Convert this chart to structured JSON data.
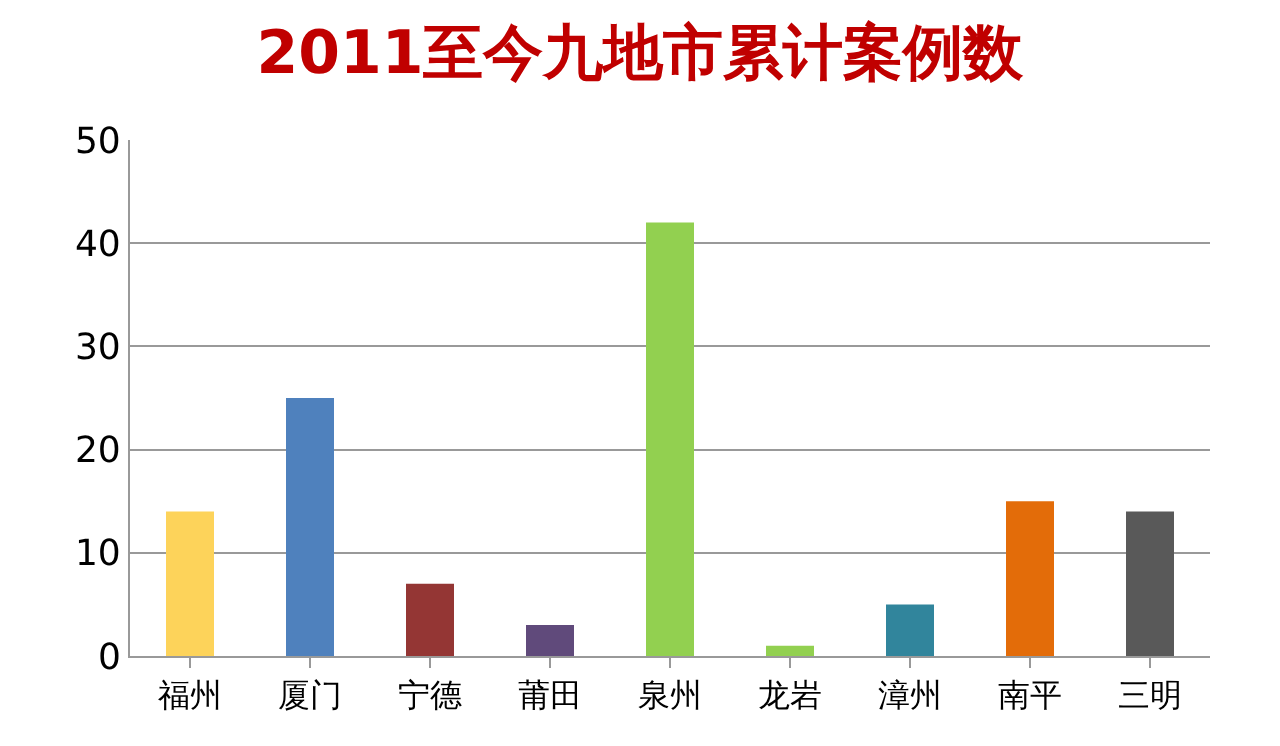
{
  "chart_data": {
    "type": "bar",
    "title": "2011至今九地市累计案例数",
    "categories": [
      "福州",
      "厦门",
      "宁德",
      "莆田",
      "泉州",
      "龙岩",
      "漳州",
      "南平",
      "三明"
    ],
    "values": [
      14,
      25,
      7,
      3,
      42,
      1,
      5,
      15,
      14
    ],
    "colors": [
      "#fdd35a",
      "#4f81bd",
      "#943634",
      "#604a7b",
      "#92d050",
      "#92d050",
      "#31859c",
      "#e36c09",
      "#595959"
    ],
    "ylim": [
      0,
      50
    ],
    "yticks": [
      0,
      10,
      20,
      30,
      40,
      50
    ],
    "grid": "y",
    "legend": false
  }
}
